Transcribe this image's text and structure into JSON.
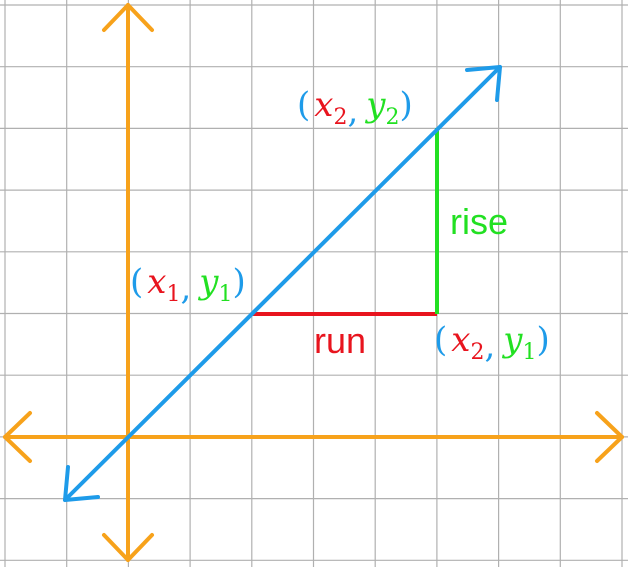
{
  "points": [
    {
      "open": "(",
      "x": "x",
      "x_sub": "2",
      "sep": ",",
      "y": "y",
      "y_sub": "2",
      "close": ")"
    },
    {
      "open": "(",
      "x": "x",
      "x_sub": "1",
      "sep": ",",
      "y": "y",
      "y_sub": "1",
      "close": ")"
    },
    {
      "open": "(",
      "x": "x",
      "x_sub": "2",
      "sep": ",",
      "y": "y",
      "y_sub": "1",
      "close": ")"
    }
  ],
  "rise": "rise",
  "run": "run"
}
